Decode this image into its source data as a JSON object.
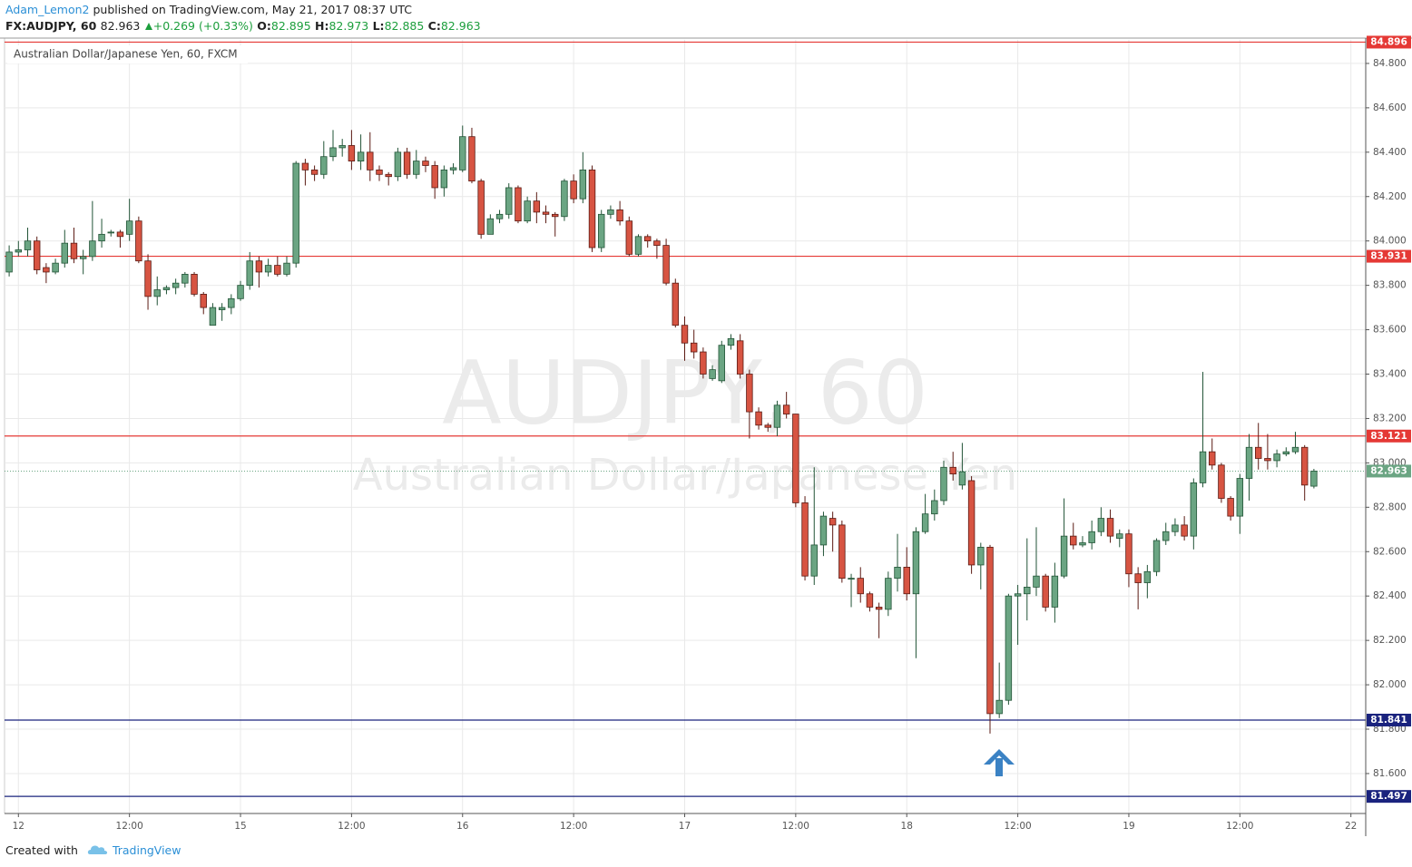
{
  "header": {
    "user": "Adam_Lemon2",
    "published": "published on TradingView.com, May 21, 2017 08:37 UTC",
    "symbol": "FX:AUDJPY, 60",
    "last": "82.963",
    "change": "+0.269 (+0.33%)",
    "open_label": "O:",
    "open": "82.895",
    "high_label": "H:",
    "high": "82.973",
    "low_label": "L:",
    "low": "82.885",
    "close_label": "C:",
    "close": "82.963"
  },
  "footer": {
    "created": "Created with",
    "brand": "TradingView"
  },
  "chart_data": {
    "type": "candlestick",
    "legend_text": "Australian Dollar/Japanese Yen, 60, FXCM",
    "watermark": "AUDJPY, 60",
    "watermark_sub": "Australian Dollar/Japanese Yen",
    "up_color": "#6ba583",
    "down_color": "#d75442",
    "grid": true,
    "xlim": [
      -0.5,
      146.6
    ],
    "ylim": [
      81.42,
      84.906
    ],
    "xticks": [
      {
        "value": 1,
        "label": "12"
      },
      {
        "value": 13,
        "label": "12:00"
      },
      {
        "value": 25,
        "label": "15"
      },
      {
        "value": 37,
        "label": "12:00"
      },
      {
        "value": 49,
        "label": "16"
      },
      {
        "value": 61,
        "label": "12:00"
      },
      {
        "value": 73,
        "label": "17"
      },
      {
        "value": 85,
        "label": "12:00"
      },
      {
        "value": 97,
        "label": "18"
      },
      {
        "value": 109,
        "label": "12:00"
      },
      {
        "value": 121,
        "label": "19"
      },
      {
        "value": 133,
        "label": "12:00"
      },
      {
        "value": 145,
        "label": "22"
      }
    ],
    "yticks": [
      {
        "value": 81.6,
        "label": "81.600"
      },
      {
        "value": 81.8,
        "label": "81.800"
      },
      {
        "value": 82.0,
        "label": "82.000"
      },
      {
        "value": 82.2,
        "label": "82.200"
      },
      {
        "value": 82.4,
        "label": "82.400"
      },
      {
        "value": 82.6,
        "label": "82.600"
      },
      {
        "value": 82.8,
        "label": "82.800"
      },
      {
        "value": 83.0,
        "label": "83.000"
      },
      {
        "value": 83.2,
        "label": "83.200"
      },
      {
        "value": 83.4,
        "label": "83.400"
      },
      {
        "value": 83.6,
        "label": "83.600"
      },
      {
        "value": 83.8,
        "label": "83.800"
      },
      {
        "value": 84.0,
        "label": "84.000"
      },
      {
        "value": 84.2,
        "label": "84.200"
      },
      {
        "value": 84.4,
        "label": "84.400"
      },
      {
        "value": 84.6,
        "label": "84.600"
      },
      {
        "value": 84.8,
        "label": "84.800"
      }
    ],
    "levels": [
      {
        "value": 84.896,
        "color": "#e53935"
      },
      {
        "value": 83.931,
        "color": "#e53935"
      },
      {
        "value": 83.121,
        "color": "#e53935"
      },
      {
        "value": 81.841,
        "color": "#1a237e"
      },
      {
        "value": 81.497,
        "color": "#1a237e"
      }
    ],
    "last_price": {
      "value": 82.963,
      "color": "#6ba583"
    },
    "open": [
      83.86,
      83.95,
      83.96,
      84.0,
      83.88,
      83.86,
      83.9,
      83.99,
      83.92,
      83.93,
      84.0,
      84.04,
      84.04,
      84.03,
      84.09,
      83.91,
      83.75,
      83.78,
      83.79,
      83.81,
      83.85,
      83.76,
      83.62,
      83.69,
      83.7,
      83.74,
      83.8,
      83.91,
      83.86,
      83.89,
      83.85,
      83.9,
      84.35,
      84.32,
      84.3,
      84.38,
      84.42,
      84.43,
      84.36,
      84.4,
      84.32,
      84.3,
      84.29,
      84.4,
      84.3,
      84.36,
      84.34,
      84.24,
      84.32,
      84.32,
      84.47,
      84.27,
      84.03,
      84.1,
      84.12,
      84.24,
      84.09,
      84.18,
      84.13,
      84.12,
      84.11,
      84.27,
      84.19,
      84.32,
      83.97,
      84.12,
      84.14,
      84.09,
      83.94,
      84.02,
      84.0,
      83.98,
      83.81,
      83.62,
      83.54,
      83.5,
      83.38,
      83.37,
      83.53,
      83.55,
      83.4,
      83.23,
      83.17,
      83.16,
      83.26,
      83.22,
      82.82,
      82.49,
      82.63,
      82.75,
      82.72,
      82.48,
      82.48,
      82.41,
      82.35,
      82.34,
      82.48,
      82.53,
      82.41,
      82.69,
      82.77,
      82.83,
      82.98,
      82.9,
      82.92,
      82.54,
      82.62,
      81.87,
      81.93,
      82.4,
      82.41,
      82.44,
      82.49,
      82.35,
      82.49,
      82.67,
      82.63,
      82.64,
      82.69,
      82.75,
      82.66,
      82.68,
      82.5,
      82.46,
      82.51,
      82.65,
      82.69,
      82.72,
      82.67,
      82.91,
      83.05,
      82.99,
      82.84,
      82.76,
      82.93,
      83.07,
      83.02,
      83.01,
      83.04,
      83.05,
      83.07,
      82.895
    ],
    "high": [
      83.98,
      84.0,
      84.06,
      84.02,
      83.9,
      83.92,
      84.05,
      84.06,
      83.96,
      84.18,
      84.1,
      84.05,
      84.05,
      84.19,
      84.11,
      83.94,
      83.84,
      83.8,
      83.83,
      83.86,
      83.86,
      83.77,
      83.72,
      83.72,
      83.76,
      83.82,
      83.95,
      83.93,
      83.92,
      83.93,
      83.93,
      84.36,
      84.37,
      84.34,
      84.45,
      84.5,
      84.46,
      84.5,
      84.48,
      84.49,
      84.34,
      84.31,
      84.42,
      84.42,
      84.41,
      84.38,
      84.36,
      84.34,
      84.35,
      84.52,
      84.51,
      84.28,
      84.12,
      84.14,
      84.26,
      84.25,
      84.2,
      84.22,
      84.16,
      84.13,
      84.28,
      84.3,
      84.4,
      84.34,
      84.14,
      84.16,
      84.18,
      84.11,
      84.03,
      84.03,
      84.01,
      84.01,
      83.83,
      83.66,
      83.6,
      83.52,
      83.44,
      83.55,
      83.58,
      83.58,
      83.42,
      83.25,
      83.18,
      83.28,
      83.32,
      83.22,
      82.85,
      82.98,
      82.78,
      82.78,
      82.74,
      82.5,
      82.53,
      82.42,
      82.37,
      82.51,
      82.68,
      82.62,
      82.71,
      82.86,
      82.88,
      83.01,
      83.05,
      83.09,
      82.94,
      82.64,
      82.63,
      82.1,
      82.41,
      82.45,
      82.66,
      82.71,
      82.5,
      82.55,
      82.84,
      82.73,
      82.67,
      82.74,
      82.8,
      82.79,
      82.7,
      82.7,
      82.53,
      82.54,
      82.66,
      82.73,
      82.75,
      82.76,
      82.93,
      83.41,
      83.11,
      83.0,
      82.85,
      82.95,
      83.13,
      83.18,
      83.13,
      83.06,
      83.07,
      83.14,
      83.08,
      82.973
    ],
    "low": [
      83.84,
      83.93,
      83.93,
      83.85,
      83.81,
      83.85,
      83.88,
      83.9,
      83.85,
      83.91,
      83.97,
      84.02,
      83.97,
      84.0,
      83.9,
      83.69,
      83.71,
      83.76,
      83.76,
      83.79,
      83.75,
      83.67,
      83.62,
      83.64,
      83.67,
      83.73,
      83.78,
      83.79,
      83.84,
      83.84,
      83.84,
      83.88,
      84.25,
      84.27,
      84.28,
      84.36,
      84.38,
      84.32,
      84.32,
      84.27,
      84.27,
      84.25,
      84.27,
      84.28,
      84.28,
      84.31,
      84.19,
      84.2,
      84.3,
      84.31,
      84.26,
      84.01,
      84.03,
      84.08,
      84.1,
      84.08,
      84.08,
      84.08,
      84.08,
      84.02,
      84.09,
      84.17,
      84.17,
      83.95,
      83.95,
      84.1,
      84.07,
      83.93,
      83.93,
      83.97,
      83.92,
      83.8,
      83.61,
      83.46,
      83.47,
      83.38,
      83.37,
      83.36,
      83.51,
      83.38,
      83.11,
      83.15,
      83.14,
      83.12,
      83.2,
      82.8,
      82.47,
      82.45,
      82.58,
      82.6,
      82.46,
      82.35,
      82.37,
      82.33,
      82.21,
      82.31,
      82.42,
      82.38,
      82.12,
      82.68,
      82.74,
      82.81,
      82.92,
      82.88,
      82.5,
      82.43,
      81.78,
      81.85,
      81.91,
      82.18,
      82.29,
      82.4,
      82.33,
      82.28,
      82.48,
      82.61,
      82.62,
      82.61,
      82.67,
      82.64,
      82.62,
      82.44,
      82.34,
      82.39,
      82.49,
      82.63,
      82.67,
      82.65,
      82.61,
      82.89,
      82.97,
      82.82,
      82.74,
      82.68,
      82.83,
      82.97,
      82.97,
      82.98,
      83.03,
      83.04,
      82.83,
      82.885
    ],
    "close": [
      83.95,
      83.96,
      84.0,
      83.87,
      83.86,
      83.9,
      83.99,
      83.92,
      83.93,
      84.0,
      84.03,
      84.04,
      84.02,
      84.09,
      83.91,
      83.75,
      83.78,
      83.79,
      83.81,
      83.85,
      83.76,
      83.7,
      83.7,
      83.7,
      83.74,
      83.8,
      83.91,
      83.86,
      83.89,
      83.85,
      83.9,
      84.35,
      84.32,
      84.3,
      84.38,
      84.42,
      84.43,
      84.36,
      84.4,
      84.32,
      84.3,
      84.29,
      84.4,
      84.3,
      84.36,
      84.34,
      84.24,
      84.32,
      84.33,
      84.47,
      84.27,
      84.03,
      84.1,
      84.12,
      84.24,
      84.09,
      84.18,
      84.13,
      84.12,
      84.11,
      84.27,
      84.19,
      84.32,
      83.97,
      84.12,
      84.14,
      84.09,
      83.94,
      84.02,
      84.0,
      83.98,
      83.81,
      83.62,
      83.54,
      83.5,
      83.4,
      83.42,
      83.53,
      83.56,
      83.4,
      83.23,
      83.17,
      83.16,
      83.26,
      83.22,
      82.82,
      82.49,
      82.63,
      82.76,
      82.72,
      82.48,
      82.48,
      82.41,
      82.35,
      82.34,
      82.48,
      82.53,
      82.41,
      82.69,
      82.77,
      82.83,
      82.98,
      82.95,
      82.96,
      82.54,
      82.62,
      81.87,
      81.93,
      82.4,
      82.41,
      82.44,
      82.49,
      82.35,
      82.49,
      82.67,
      82.63,
      82.64,
      82.69,
      82.75,
      82.67,
      82.68,
      82.5,
      82.46,
      82.51,
      82.65,
      82.69,
      82.72,
      82.67,
      82.91,
      83.05,
      82.99,
      82.84,
      82.76,
      82.93,
      83.07,
      83.02,
      83.01,
      83.04,
      83.05,
      83.07,
      82.9,
      82.963
    ]
  }
}
